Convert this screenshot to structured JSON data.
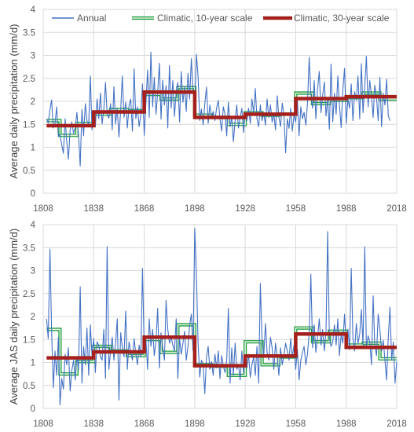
{
  "chart_data": [
    {
      "type": "line",
      "title": "",
      "xlabel": "",
      "ylabel": "Average daily precipitation (mm/d)",
      "xlim": [
        1808,
        2018
      ],
      "ylim": [
        0,
        4
      ],
      "xticks": [
        "1808",
        "1838",
        "1868",
        "1898",
        "1928",
        "1958",
        "1988",
        "2018"
      ],
      "yticks": [
        "0",
        "0.5",
        "1",
        "1.5",
        "2",
        "2.5",
        "3",
        "3.5",
        "4"
      ],
      "legend_position": "top",
      "grid": true,
      "series": [
        {
          "name": "Annual",
          "color": "#4472c4",
          "x_start": 1810,
          "values": [
            1.62,
            1.53,
            1.82,
            2.03,
            1.42,
            1.51,
            1.88,
            1.23,
            1.28,
            1.05,
            0.87,
            1.62,
            1.12,
            0.74,
            1.38,
            1.55,
            1.31,
            1.42,
            1.76,
            1.26,
            0.59,
            1.82,
            1.25,
            1.95,
            1.58,
            1.48,
            2.55,
            1.38,
            1.77,
            1.45,
            2.05,
            1.62,
            2.18,
            1.51,
            1.82,
            2.41,
            1.72,
            1.63,
            1.95,
            1.38,
            2.32,
            1.51,
            1.85,
            1.22,
            1.79,
            2.55,
            1.65,
            1.98,
            1.42,
            1.91,
            2.05,
            1.35,
            2.71,
            1.62,
            1.88,
            1.45,
            1.71,
            2.38,
            1.26,
            1.94,
            2.68,
            1.65,
            3.07,
            1.88,
            2.52,
            1.72,
            2.18,
            2.83,
            1.61,
            2.46,
            1.92,
            2.34,
            1.42,
            2.78,
            1.85,
            2.45,
            1.67,
            2.22,
            2.41,
            1.55,
            2.65,
            1.98,
            2.32,
            1.78,
            2.61,
            2.05,
            2.93,
            2.22,
            1.94,
            3.02,
            2.56,
            1.58,
            1.83,
            1.49,
            1.95,
            2.31,
            1.52,
            1.92,
            1.66,
            1.78,
            1.58,
            1.85,
            2.02,
            1.62,
            1.35,
            1.88,
            1.72,
            1.25,
            1.98,
            1.45,
            1.65,
            1.12,
            1.58,
            1.92,
            1.42,
            1.65,
            1.85,
            1.32,
            1.76,
            1.58,
            1.85,
            1.52,
            2.05,
            1.75,
            2.28,
            1.62,
            1.45,
            1.92,
            1.58,
            1.75,
            1.48,
            2.05,
            1.65,
            1.92,
            1.55,
            1.72,
            1.38,
            2.12,
            1.65,
            1.45,
            1.96,
            1.72,
            0.88,
            1.62,
            1.41,
            1.85,
            1.35,
            1.71,
            1.55,
            2.02,
            1.25,
            1.88,
            1.62,
            1.76,
            1.48,
            1.95,
            2.96,
            2.15,
            1.85,
            2.45,
            1.62,
            2.28,
            2.65,
            1.75,
            2.13,
            2.42,
            1.68,
            2.05,
            1.39,
            2.81,
            1.55,
            2.18,
            1.72,
            2.55,
            1.92,
            1.43,
            2.25,
            2.72,
            1.52,
            2.05,
            1.85,
            2.38,
            1.58,
            2.21,
            2.02,
            2.55,
            1.62,
            2.82,
            1.75,
            2.31,
            2.98,
            1.88,
            2.45,
            2.12,
            1.65,
            2.35,
            2.08,
            1.58,
            2.52,
            1.45,
            2.18,
            1.92,
            2.48,
            1.68,
            1.58
          ]
        },
        {
          "name": "Climatic, 10-year scale",
          "color": "#1e9e3c",
          "segments": [
            {
              "x0": 1810,
              "x1": 1818,
              "y": 1.58
            },
            {
              "x0": 1818,
              "x1": 1828,
              "y": 1.26
            },
            {
              "x0": 1828,
              "x1": 1838,
              "y": 1.52
            },
            {
              "x0": 1838,
              "x1": 1848,
              "y": 1.72
            },
            {
              "x0": 1848,
              "x1": 1858,
              "y": 1.82
            },
            {
              "x0": 1858,
              "x1": 1868,
              "y": 1.8
            },
            {
              "x0": 1868,
              "x1": 1878,
              "y": 2.15
            },
            {
              "x0": 1878,
              "x1": 1888,
              "y": 2.05
            },
            {
              "x0": 1888,
              "x1": 1898,
              "y": 2.3
            },
            {
              "x0": 1898,
              "x1": 1908,
              "y": 1.7
            },
            {
              "x0": 1908,
              "x1": 1918,
              "y": 1.65
            },
            {
              "x0": 1918,
              "x1": 1928,
              "y": 1.5
            },
            {
              "x0": 1928,
              "x1": 1938,
              "y": 1.75
            },
            {
              "x0": 1938,
              "x1": 1948,
              "y": 1.7
            },
            {
              "x0": 1948,
              "x1": 1958,
              "y": 1.72
            },
            {
              "x0": 1958,
              "x1": 1968,
              "y": 2.18
            },
            {
              "x0": 1968,
              "x1": 1978,
              "y": 1.95
            },
            {
              "x0": 1978,
              "x1": 1988,
              "y": 2.02
            },
            {
              "x0": 1988,
              "x1": 1998,
              "y": 2.08
            },
            {
              "x0": 1998,
              "x1": 2008,
              "y": 2.18
            },
            {
              "x0": 2008,
              "x1": 2018,
              "y": 2.05
            }
          ]
        },
        {
          "name": "Climatic, 30-year scale",
          "color": "#a5201c",
          "segments": [
            {
              "x0": 1810,
              "x1": 1838,
              "y": 1.47
            },
            {
              "x0": 1838,
              "x1": 1868,
              "y": 1.77
            },
            {
              "x0": 1868,
              "x1": 1898,
              "y": 2.2
            },
            {
              "x0": 1898,
              "x1": 1928,
              "y": 1.65
            },
            {
              "x0": 1928,
              "x1": 1958,
              "y": 1.72
            },
            {
              "x0": 1958,
              "x1": 1988,
              "y": 2.06
            },
            {
              "x0": 1988,
              "x1": 2018,
              "y": 2.1
            }
          ]
        }
      ]
    },
    {
      "type": "line",
      "title": "",
      "xlabel": "",
      "ylabel": "Average JAS daily precipitation (mm/d)",
      "xlim": [
        1808,
        2018
      ],
      "ylim": [
        0,
        4
      ],
      "xticks": [
        "1808",
        "1838",
        "1868",
        "1898",
        "1928",
        "1958",
        "1988",
        "2018"
      ],
      "yticks": [
        "0",
        "0.5",
        "1",
        "1.5",
        "2",
        "2.5",
        "3",
        "3.5",
        "4"
      ],
      "grid": true,
      "series": [
        {
          "name": "Annual",
          "color": "#4472c4",
          "x_start": 1810,
          "values": [
            1.95,
            1.52,
            3.47,
            1.68,
            0.45,
            1.25,
            0.72,
            1.55,
            0.08,
            0.65,
            0.42,
            1.18,
            0.95,
            1.32,
            0.38,
            0.82,
            1.05,
            0.62,
            1.12,
            0.85,
            2.65,
            0.55,
            1.35,
            0.95,
            1.75,
            0.72,
            1.82,
            1.15,
            1.52,
            0.78,
            1.45,
            1.38,
            1.12,
            1.05,
            1.72,
            0.65,
            3.52,
            0.85,
            1.25,
            1.55,
            1.05,
            1.42,
            1.95,
            0.18,
            1.65,
            1.32,
            1.12,
            2.12,
            0.85,
            1.45,
            1.22,
            1.05,
            1.52,
            1.18,
            0.95,
            1.38,
            1.12,
            3.05,
            1.28,
            1.52,
            0.85,
            1.95,
            1.35,
            1.72,
            1.15,
            1.48,
            2.18,
            0.88,
            1.65,
            1.32,
            1.05,
            2.35,
            1.72,
            1.42,
            1.55,
            1.38,
            1.25,
            1.95,
            0.65,
            1.52,
            1.18,
            1.42,
            1.68,
            1.05,
            1.35,
            1.82,
            2.05,
            1.25,
            3.92,
            2.95,
            1.45,
            0.68,
            1.05,
            0.95,
            0.32,
            1.12,
            1.35,
            0.85,
            1.02,
            0.72,
            1.18,
            0.88,
            1.25,
            0.65,
            1.15,
            0.92,
            0.78,
            1.05,
            2.18,
            0.55,
            1.32,
            0.72,
            1.42,
            0.85,
            0.95,
            0.62,
            1.25,
            0.78,
            1.05,
            0.88,
            1.18,
            0.68,
            0.95,
            1.12,
            0.72,
            1.35,
            0.55,
            2.72,
            1.48,
            1.12,
            1.85,
            1.22,
            1.05,
            1.55,
            1.32,
            0.85,
            1.42,
            1.12,
            0.72,
            1.32,
            0.95,
            1.15,
            1.42,
            1.25,
            1.05,
            1.52,
            1.12,
            1.38,
            0.85,
            1.28,
            0.62,
            1.05,
            1.22,
            1.35,
            0.95,
            1.18,
            1.65,
            2.92,
            1.32,
            1.82,
            1.22,
            1.55,
            1.95,
            1.38,
            1.72,
            1.25,
            1.68,
            3.85,
            1.52,
            1.35,
            1.45,
            1.82,
            1.38,
            1.95,
            1.15,
            1.62,
            1.42,
            2.05,
            1.35,
            1.72,
            1.28,
            3.05,
            1.52,
            1.25,
            1.85,
            1.42,
            1.62,
            2.15,
            1.38,
            3.52,
            1.32,
            1.58,
            1.45,
            0.95,
            2.45,
            1.35,
            1.15,
            2.05,
            1.72,
            1.25,
            1.48,
            1.05,
            0.62,
            1.55,
            2.2,
            1.05,
            1.45,
            0.55,
            1.02
          ]
        },
        {
          "name": "Climatic, 10-year scale",
          "color": "#1e9e3c",
          "segments": [
            {
              "x0": 1810,
              "x1": 1818,
              "y": 1.72
            },
            {
              "x0": 1818,
              "x1": 1828,
              "y": 0.75
            },
            {
              "x0": 1828,
              "x1": 1838,
              "y": 1.02
            },
            {
              "x0": 1838,
              "x1": 1848,
              "y": 1.35
            },
            {
              "x0": 1848,
              "x1": 1858,
              "y": 1.25
            },
            {
              "x0": 1858,
              "x1": 1868,
              "y": 1.15
            },
            {
              "x0": 1868,
              "x1": 1878,
              "y": 1.5
            },
            {
              "x0": 1878,
              "x1": 1888,
              "y": 1.22
            },
            {
              "x0": 1888,
              "x1": 1898,
              "y": 1.82
            },
            {
              "x0": 1898,
              "x1": 1908,
              "y": 0.95
            },
            {
              "x0": 1908,
              "x1": 1918,
              "y": 0.92
            },
            {
              "x0": 1918,
              "x1": 1928,
              "y": 0.72
            },
            {
              "x0": 1928,
              "x1": 1938,
              "y": 1.45
            },
            {
              "x0": 1938,
              "x1": 1948,
              "y": 0.95
            },
            {
              "x0": 1948,
              "x1": 1958,
              "y": 1.12
            },
            {
              "x0": 1958,
              "x1": 1968,
              "y": 1.75
            },
            {
              "x0": 1968,
              "x1": 1978,
              "y": 1.45
            },
            {
              "x0": 1978,
              "x1": 1988,
              "y": 1.68
            },
            {
              "x0": 1988,
              "x1": 1998,
              "y": 1.38
            },
            {
              "x0": 1998,
              "x1": 2008,
              "y": 1.42
            },
            {
              "x0": 2008,
              "x1": 2018,
              "y": 1.08
            }
          ]
        },
        {
          "name": "Climatic, 30-year scale",
          "color": "#a5201c",
          "segments": [
            {
              "x0": 1810,
              "x1": 1838,
              "y": 1.1
            },
            {
              "x0": 1838,
              "x1": 1868,
              "y": 1.23
            },
            {
              "x0": 1868,
              "x1": 1898,
              "y": 1.55
            },
            {
              "x0": 1898,
              "x1": 1928,
              "y": 0.93
            },
            {
              "x0": 1928,
              "x1": 1958,
              "y": 1.14
            },
            {
              "x0": 1958,
              "x1": 1988,
              "y": 1.62
            },
            {
              "x0": 1988,
              "x1": 2018,
              "y": 1.33
            }
          ]
        }
      ]
    }
  ]
}
